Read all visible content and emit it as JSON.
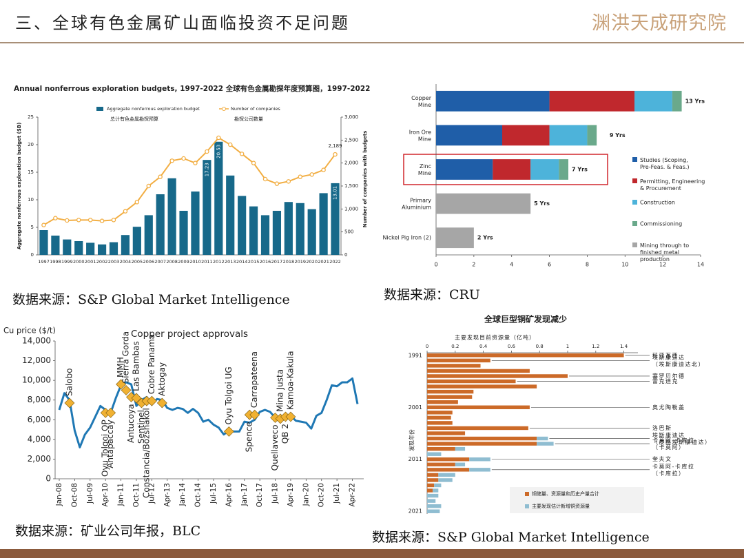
{
  "header": {
    "title": "三、全球有色金属矿山面临投资不足问题",
    "logo": "渊洪天成研究院"
  },
  "chart_data": [
    {
      "type": "combo",
      "title": "Annual nonferrous exploration budgets, 1997-2022  全球有色金属勘探年度预算图，1997-2022",
      "ylabel": "Aggregate nonferrous exploration budget ($B)",
      "y2label": "Number of companies with budgets",
      "categories": [
        "1997",
        "1998",
        "1999",
        "2000",
        "2001",
        "2002",
        "2003",
        "2004",
        "2005",
        "2006",
        "2007",
        "2008",
        "2009",
        "2010",
        "2011",
        "2012",
        "2013",
        "2014",
        "2015",
        "2016",
        "2017",
        "2018",
        "2019",
        "2020",
        "2021",
        "2022"
      ],
      "ylim": [
        0,
        25
      ],
      "yticks": [
        0,
        5,
        10,
        15,
        20,
        25
      ],
      "y2lim": [
        0,
        3000
      ],
      "y2ticks": [
        0,
        500,
        {
          "value": 1000,
          "label": "1,000"
        },
        {
          "value": 1500,
          "label": "1,500"
        },
        {
          "value": 2000,
          "label": "2,000"
        },
        {
          "value": 2500,
          "label": "2,500"
        },
        {
          "value": 3000,
          "label": "3,000"
        }
      ],
      "series": [
        {
          "name": "Aggregate nonferrous exploration budget",
          "name_zh": "总计有色金属勘探预算",
          "type": "bar",
          "color": "#17698a",
          "values": [
            4.5,
            3.5,
            2.8,
            2.5,
            2.2,
            1.9,
            2.3,
            3.6,
            5.1,
            7.2,
            11.0,
            13.9,
            8.0,
            11.5,
            17.23,
            20.53,
            14.4,
            10.7,
            8.8,
            7.2,
            8.0,
            9.6,
            9.4,
            8.3,
            11.2,
            13.01
          ],
          "value_labels": [
            null,
            null,
            null,
            null,
            null,
            null,
            null,
            null,
            null,
            null,
            null,
            null,
            null,
            null,
            "17.23",
            "20.53",
            null,
            null,
            null,
            null,
            null,
            null,
            null,
            null,
            null,
            "13.01"
          ]
        },
        {
          "name": "Number of companies",
          "name_zh": "勘探公司数量",
          "type": "line",
          "axis": "y2",
          "color": "#f2ae43",
          "values": [
            650,
            800,
            750,
            760,
            760,
            740,
            760,
            950,
            1150,
            1500,
            1700,
            2050,
            2100,
            2000,
            2250,
            2550,
            2400,
            2200,
            2000,
            1650,
            1550,
            1600,
            1700,
            1750,
            1850,
            2189
          ],
          "value_labels": [
            null,
            null,
            null,
            null,
            null,
            null,
            null,
            null,
            null,
            null,
            null,
            null,
            null,
            null,
            null,
            null,
            null,
            null,
            null,
            null,
            null,
            null,
            null,
            null,
            null,
            "2,189"
          ]
        }
      ],
      "source": "数据来源：S&P Global Market Intelligence"
    },
    {
      "type": "bar",
      "orientation": "horizontal",
      "stacked": true,
      "x_axis": "bottom",
      "legend": "right",
      "categories": [
        "Copper Mine",
        "Iron Ore Mine",
        "Zinc Mine",
        "Primary Aluminium",
        "Nickel Pig Iron (2)"
      ],
      "xlim": [
        0,
        14
      ],
      "xticks": [
        0,
        2,
        4,
        6,
        8,
        10,
        12,
        14
      ],
      "series": [
        {
          "name": "Studies (Scoping, Pre-Feas. & Feas.)",
          "color": "#1f5ea8",
          "values": [
            6,
            3.5,
            3,
            0,
            0
          ]
        },
        {
          "name": "Permitting, Engineering & Procurement",
          "color": "#c0282d",
          "values": [
            4.5,
            2.5,
            2,
            0,
            0
          ]
        },
        {
          "name": "Construction",
          "color": "#4db3da",
          "values": [
            2,
            2,
            1.5,
            0,
            0
          ]
        },
        {
          "name": "Commissioning",
          "color": "#6aa98b",
          "values": [
            0.5,
            0.5,
            0.5,
            0,
            0
          ]
        },
        {
          "name": "Mining through to finished metal production",
          "color": "#a6a6a6",
          "values": [
            0,
            0,
            0,
            5,
            2
          ]
        }
      ],
      "totals": [
        13,
        9,
        7,
        5,
        2
      ],
      "total_labels": [
        "13 Yrs",
        "9 Yrs",
        "7 Yrs",
        "5 Yrs",
        "2 Yrs"
      ],
      "source": "数据来源：CRU"
    },
    {
      "type": "line",
      "title": "Copper project approvals",
      "ylabel": "Cu price ($/t)",
      "color": "#1f78b4",
      "categories": [
        "Jan-08",
        null,
        null,
        "Oct-08",
        null,
        null,
        "Jul-09",
        null,
        null,
        "Apr-10",
        null,
        null,
        "Jan-11",
        null,
        null,
        "Oct-11",
        null,
        null,
        "Jul-12",
        null,
        null,
        "Apr-13",
        null,
        null,
        "Jan-14",
        null,
        null,
        "Oct-14",
        null,
        null,
        "Jul-15",
        null,
        null,
        "Apr-16",
        null,
        null,
        "Jan-17",
        null,
        null,
        "Oct-17",
        null,
        null,
        "Jul-18",
        null,
        null,
        "Apr-19",
        null,
        null,
        "Jan-20",
        null,
        null,
        "Oct-20",
        null,
        null,
        "Jul-21",
        null,
        null,
        "Apr-22",
        null
      ],
      "values": [
        7000,
        8700,
        8000,
        4900,
        3200,
        4500,
        5200,
        6300,
        7400,
        7000,
        6700,
        8200,
        9500,
        9800,
        9600,
        7400,
        8000,
        8300,
        7600,
        8100,
        8000,
        7200,
        7000,
        7200,
        7100,
        6700,
        7100,
        6700,
        5800,
        6000,
        5500,
        5200,
        4500,
        4900,
        4800,
        4800,
        5800,
        5700,
        6000,
        6800,
        7000,
        6800,
        6200,
        6200,
        6000,
        6400,
        5900,
        5800,
        5700,
        5100,
        6400,
        6700,
        8000,
        9500,
        9400,
        9800,
        9800,
        10200,
        7600
      ],
      "ylim": [
        0,
        14000
      ],
      "yticks": [
        0,
        {
          "value": 2000,
          "label": "2,000"
        },
        {
          "value": 4000,
          "label": "4,000"
        },
        {
          "value": 6000,
          "label": "6,000"
        },
        {
          "value": 8000,
          "label": "8,000"
        },
        {
          "value": 10000,
          "label": "10,000"
        },
        {
          "value": 12000,
          "label": "12,000"
        },
        {
          "value": 14000,
          "label": "14,000"
        }
      ],
      "marker_color": "#f0b132",
      "annotations": [
        {
          "label": "Salobo",
          "index": 2,
          "value": 7700,
          "position": "above"
        },
        {
          "label": "Oyu Tolgoi OP",
          "index": 9,
          "value": 6700,
          "position": "below"
        },
        {
          "label": "Antapaccay",
          "index": 10,
          "value": 6700,
          "position": "below"
        },
        {
          "label": "MMH",
          "index": 12,
          "value": 9600,
          "position": "above"
        },
        {
          "label": "Sierra Gorda",
          "index": 13,
          "value": 9000,
          "position": "above"
        },
        {
          "label": "Antucoya",
          "index": 14,
          "value": 8300,
          "position": "below"
        },
        {
          "label": "Las Bambas",
          "index": 15,
          "value": 8200,
          "position": "above"
        },
        {
          "label": "Sentinel",
          "index": 16,
          "value": 7700,
          "position": "below"
        },
        {
          "label": "Constancia/Bozshakol",
          "index": 17,
          "value": 7900,
          "position": "below"
        },
        {
          "label": "Cobre Panama",
          "index": 18,
          "value": 7900,
          "position": "above"
        },
        {
          "label": "Aktogay",
          "index": 20,
          "value": 7700,
          "position": "above"
        },
        {
          "label": "Oyu Tolgoi UG",
          "index": 33,
          "value": 4800,
          "position": "above"
        },
        {
          "label": "Spence",
          "index": 37,
          "value": 6500,
          "position": "below"
        },
        {
          "label": "Carrapateena",
          "index": 38,
          "value": 6500,
          "position": "above"
        },
        {
          "label": "Quellaveco",
          "index": 42,
          "value": 6200,
          "position": "below"
        },
        {
          "label": "Mina Justa",
          "index": 43,
          "value": 6100,
          "position": "above"
        },
        {
          "label": "QB 2",
          "index": 44,
          "value": 6300,
          "position": "below"
        },
        {
          "label": "Kamoa-Kakula",
          "index": 45,
          "value": 6300,
          "position": "above"
        }
      ],
      "source": "数据来源：矿业公司年报，BLC"
    },
    {
      "type": "bar",
      "orientation": "horizontal",
      "stacked": true,
      "x_axis": "top",
      "legend": "lower right",
      "title": "全球巨型铜矿发现减少",
      "xlabel": "主要发现目前资源量（亿吨）",
      "ylabel": "发现年份",
      "categories": [
        "1991",
        null,
        null,
        null,
        null,
        null,
        null,
        null,
        null,
        null,
        "2001",
        null,
        null,
        null,
        null,
        null,
        null,
        null,
        null,
        null,
        "2011",
        null,
        null,
        null,
        null,
        null,
        null,
        null,
        null,
        null,
        "2021"
      ],
      "xlim": [
        0,
        1.5
      ],
      "xticks": [
        0,
        0.2,
        0.4,
        0.6,
        0.8,
        1,
        1.2,
        1.4
      ],
      "series": [
        {
          "name": "铜储量、资源量和历史产量合计",
          "color": "#cc6a28",
          "values": [
            1.4,
            0.45,
            0.38,
            0.73,
            1.0,
            0.63,
            0.78,
            0.33,
            0.32,
            0.22,
            0.73,
            0.18,
            0.17,
            0.18,
            0.72,
            0.27,
            0.78,
            0.78,
            0.2,
            0,
            0.3,
            0.2,
            0.3,
            0.08,
            0.08,
            0.05,
            0.04,
            0,
            0,
            0,
            0
          ]
        },
        {
          "name": "主要发现估计新增铜资源量",
          "color": "#8fbdd1",
          "values": [
            0,
            0,
            0,
            0,
            0,
            0,
            0,
            0,
            0,
            0,
            0,
            0,
            0,
            0,
            0,
            0,
            0.08,
            0.12,
            0.07,
            0.1,
            0.15,
            0.07,
            0.15,
            0.12,
            0.1,
            0.05,
            0.04,
            0.08,
            0.06,
            0.1,
            0.09
          ]
        }
      ],
      "annotations": [
        {
          "label": "科亚瓦西",
          "index": 0
        },
        {
          "label": "埃斯康迪达（埃斯康迪达北）",
          "index": 1
        },
        {
          "label": "塞罗贝尔德",
          "index": 4
        },
        {
          "label": "雷克迪克",
          "index": 5
        },
        {
          "label": "奥尤陶勒盖",
          "index": 10
        },
        {
          "label": "洛巴斯",
          "index": 14
        },
        {
          "label": "埃斯康迪达（皮格埃斯康迪达）",
          "index": 16
        },
        {
          "label": "卡莫阿-卡库拉（卡莫阿）",
          "index": 17
        },
        {
          "label": "奎夫文",
          "index": 20
        },
        {
          "label": "卡莫阿-卡库拉（卡库拉）",
          "index": 22
        }
      ],
      "source": "数据来源：S&P Global Market Intelligence"
    }
  ]
}
